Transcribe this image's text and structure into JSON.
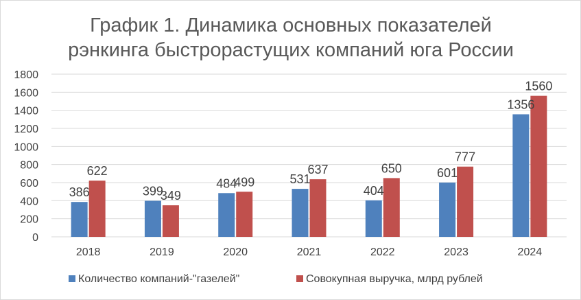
{
  "chart_data": {
    "type": "bar",
    "title_lines": [
      "График 1. Динамика основных показателей",
      "рэнкинга быстрорастущих компаний юга России"
    ],
    "categories": [
      "2018",
      "2019",
      "2020",
      "2021",
      "2022",
      "2023",
      "2024"
    ],
    "series": [
      {
        "name": "Количество компаний-\"газелей\"",
        "values": [
          386,
          399,
          484,
          531,
          404,
          601,
          1356
        ],
        "color": "#4f81bd"
      },
      {
        "name": "Совокупная выручка, млрд рублей",
        "values": [
          622,
          349,
          499,
          637,
          650,
          777,
          1560
        ],
        "color": "#c0504d"
      }
    ],
    "ylim": [
      0,
      1800
    ],
    "yticks": [
      0,
      200,
      400,
      600,
      800,
      1000,
      1200,
      1400,
      1600,
      1800
    ],
    "grid": true,
    "gridColor": "#d9d9d9",
    "legend_position": "bottom",
    "xlabel": "",
    "ylabel": ""
  }
}
